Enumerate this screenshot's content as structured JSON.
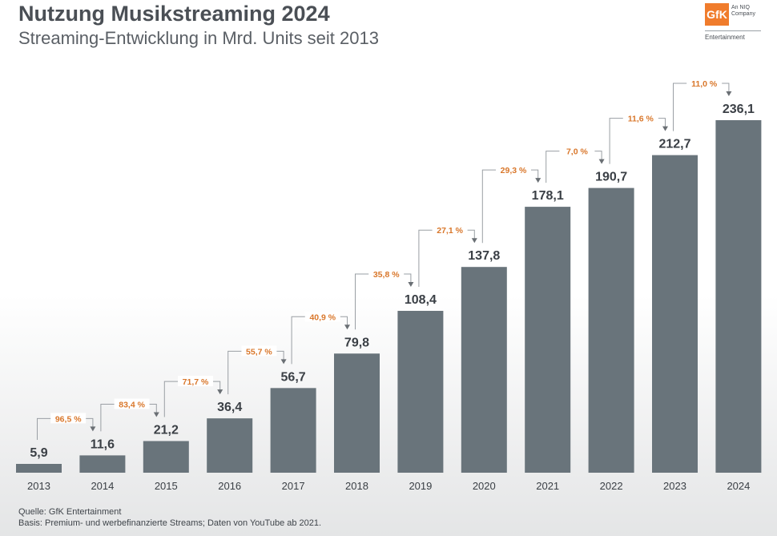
{
  "header": {
    "title": "Nutzung Musikstreaming 2024",
    "subtitle": "Streaming-Entwicklung in Mrd. Units seit 2013"
  },
  "logo": {
    "mark": "GfK",
    "line1": "An NIQ",
    "line2": "Company",
    "division": "Entertainment"
  },
  "footer": {
    "source": "Quelle: GfK Entertainment",
    "basis": "Basis: Premium- und werbefinanzierte Streams; Daten von YouTube ab 2021."
  },
  "colors": {
    "bar": "#69747b",
    "growth": "#d9772b",
    "text": "#3a3f45",
    "connector": "#9a9fa4"
  },
  "chart_data": {
    "type": "bar",
    "title": "Nutzung Musikstreaming 2024",
    "subtitle": "Streaming-Entwicklung in Mrd. Units seit 2013",
    "categories": [
      "2013",
      "2014",
      "2015",
      "2016",
      "2017",
      "2018",
      "2019",
      "2020",
      "2021",
      "2022",
      "2023",
      "2024"
    ],
    "values": [
      5.9,
      11.6,
      21.2,
      36.4,
      56.7,
      79.8,
      108.4,
      137.8,
      178.1,
      190.7,
      212.7,
      236.1
    ],
    "value_labels": [
      "5,9",
      "11,6",
      "21,2",
      "36,4",
      "56,7",
      "79,8",
      "108,4",
      "137,8",
      "178,1",
      "190,7",
      "212,7",
      "236,1"
    ],
    "growth_labels": [
      "96,5 %",
      "83,4 %",
      "71,7 %",
      "55,7 %",
      "40,9 %",
      "35,8 %",
      "27,1 %",
      "29,3 %",
      "7,0 %",
      "11,6 %",
      "11,0 %"
    ],
    "ylim": [
      0,
      236.1
    ],
    "grid": false,
    "legend": "none"
  }
}
